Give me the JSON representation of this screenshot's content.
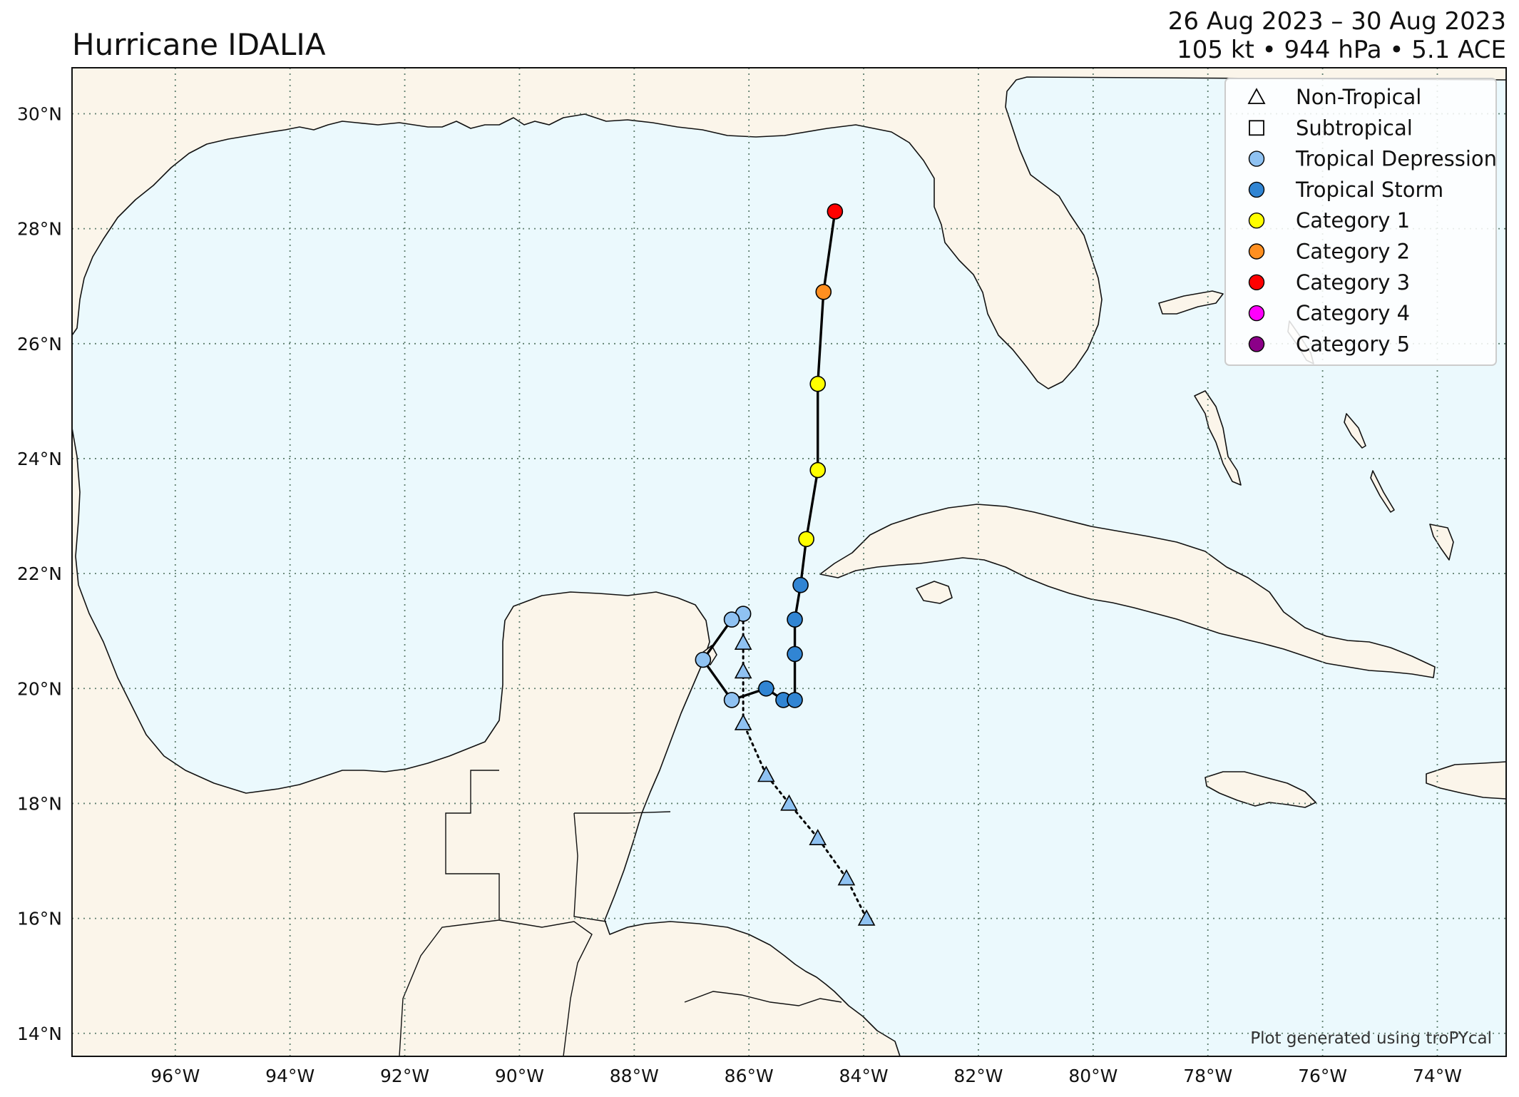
{
  "title": "Hurricane IDALIA",
  "date_range": "26 Aug 2023 – 30 Aug 2023",
  "stats": "105 kt • 944 hPa • 5.1 ACE",
  "credit": "Plot generated using troPYcal",
  "map": {
    "lon_range": [
      -97.8,
      -72.8
    ],
    "lat_range": [
      13.6,
      30.8
    ],
    "ocean_color": "#ebf9fd",
    "land_color": "#fbf5ea"
  },
  "ticks": {
    "lat": [
      {
        "value": 30,
        "label": "30°N"
      },
      {
        "value": 28,
        "label": "28°N"
      },
      {
        "value": 26,
        "label": "26°N"
      },
      {
        "value": 24,
        "label": "24°N"
      },
      {
        "value": 22,
        "label": "22°N"
      },
      {
        "value": 20,
        "label": "20°N"
      },
      {
        "value": 18,
        "label": "18°N"
      },
      {
        "value": 16,
        "label": "16°N"
      },
      {
        "value": 14,
        "label": "14°N"
      }
    ],
    "lon": [
      {
        "value": -96,
        "label": "96°W"
      },
      {
        "value": -94,
        "label": "94°W"
      },
      {
        "value": -92,
        "label": "92°W"
      },
      {
        "value": -90,
        "label": "90°W"
      },
      {
        "value": -88,
        "label": "88°W"
      },
      {
        "value": -86,
        "label": "86°W"
      },
      {
        "value": -84,
        "label": "84°W"
      },
      {
        "value": -82,
        "label": "82°W"
      },
      {
        "value": -80,
        "label": "80°W"
      },
      {
        "value": -78,
        "label": "78°W"
      },
      {
        "value": -76,
        "label": "76°W"
      },
      {
        "value": -74,
        "label": "74°W"
      }
    ]
  },
  "legend": {
    "items": [
      {
        "label": "Non-Tropical",
        "marker": "triangle",
        "color": "none"
      },
      {
        "label": "Subtropical",
        "marker": "square",
        "color": "none"
      },
      {
        "label": "Tropical Depression",
        "marker": "circle",
        "color": "#8fc2f2"
      },
      {
        "label": "Tropical Storm",
        "marker": "circle",
        "color": "#3185d3"
      },
      {
        "label": "Category 1",
        "marker": "circle",
        "color": "#ffff00"
      },
      {
        "label": "Category 2",
        "marker": "circle",
        "color": "#ff8f20"
      },
      {
        "label": "Category 3",
        "marker": "circle",
        "color": "#ff0000"
      },
      {
        "label": "Category 4",
        "marker": "circle",
        "color": "#ff00fc"
      },
      {
        "label": "Category 5",
        "marker": "circle",
        "color": "#8b0088"
      }
    ]
  },
  "track": [
    {
      "lon": -83.95,
      "lat": 16.0,
      "type": "non-tropical",
      "color": "#8fc2f2"
    },
    {
      "lon": -84.3,
      "lat": 16.7,
      "type": "non-tropical",
      "color": "#8fc2f2"
    },
    {
      "lon": -84.8,
      "lat": 17.4,
      "type": "non-tropical",
      "color": "#8fc2f2"
    },
    {
      "lon": -85.3,
      "lat": 18.0,
      "type": "non-tropical",
      "color": "#8fc2f2"
    },
    {
      "lon": -85.7,
      "lat": 18.5,
      "type": "non-tropical",
      "color": "#8fc2f2"
    },
    {
      "lon": -86.1,
      "lat": 19.4,
      "type": "non-tropical",
      "color": "#8fc2f2"
    },
    {
      "lon": -86.1,
      "lat": 20.3,
      "type": "non-tropical",
      "color": "#8fc2f2"
    },
    {
      "lon": -86.1,
      "lat": 20.8,
      "type": "non-tropical",
      "color": "#8fc2f2"
    },
    {
      "lon": -86.1,
      "lat": 21.3,
      "type": "tropical",
      "color": "#8fc2f2"
    },
    {
      "lon": -86.3,
      "lat": 21.2,
      "type": "tropical",
      "color": "#8fc2f2"
    },
    {
      "lon": -86.8,
      "lat": 20.5,
      "type": "tropical",
      "color": "#8fc2f2"
    },
    {
      "lon": -86.3,
      "lat": 19.8,
      "type": "tropical",
      "color": "#8fc2f2"
    },
    {
      "lon": -85.7,
      "lat": 20.0,
      "type": "tropical",
      "color": "#3185d3"
    },
    {
      "lon": -85.4,
      "lat": 19.8,
      "type": "tropical",
      "color": "#3185d3"
    },
    {
      "lon": -85.2,
      "lat": 19.8,
      "type": "tropical",
      "color": "#3185d3"
    },
    {
      "lon": -85.2,
      "lat": 20.6,
      "type": "tropical",
      "color": "#3185d3"
    },
    {
      "lon": -85.2,
      "lat": 21.2,
      "type": "tropical",
      "color": "#3185d3"
    },
    {
      "lon": -85.1,
      "lat": 21.8,
      "type": "tropical",
      "color": "#3185d3"
    },
    {
      "lon": -85.0,
      "lat": 22.6,
      "type": "tropical",
      "color": "#ffff00"
    },
    {
      "lon": -84.8,
      "lat": 23.8,
      "type": "tropical",
      "color": "#ffff00"
    },
    {
      "lon": -84.8,
      "lat": 25.3,
      "type": "tropical",
      "color": "#ffff00"
    },
    {
      "lon": -84.7,
      "lat": 26.9,
      "type": "tropical",
      "color": "#ff8f20"
    },
    {
      "lon": -84.5,
      "lat": 28.3,
      "type": "tropical",
      "color": "#ff0000"
    }
  ]
}
